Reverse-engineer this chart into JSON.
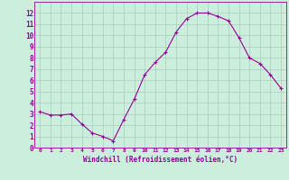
{
  "x": [
    0,
    1,
    2,
    3,
    4,
    5,
    6,
    7,
    8,
    9,
    10,
    11,
    12,
    13,
    14,
    15,
    16,
    17,
    18,
    19,
    20,
    21,
    22,
    23
  ],
  "y": [
    3.2,
    2.9,
    2.9,
    3.0,
    2.1,
    1.3,
    1.0,
    0.6,
    2.5,
    4.3,
    6.5,
    7.6,
    8.5,
    10.3,
    11.5,
    12.0,
    12.0,
    11.7,
    11.3,
    9.8,
    8.0,
    7.5,
    6.5,
    5.3
  ],
  "line_color": "#990099",
  "marker": "+",
  "marker_size": 3,
  "bg_color": "#cceedd",
  "grid_color": "#aaccbb",
  "xlabel": "Windchill (Refroidissement éolien,°C)",
  "xlabel_color": "#990099",
  "xlim": [
    -0.5,
    23.5
  ],
  "ylim": [
    0,
    13
  ],
  "xtick_labels": [
    "0",
    "1",
    "2",
    "3",
    "4",
    "5",
    "6",
    "7",
    "8",
    "9",
    "10",
    "11",
    "12",
    "13",
    "14",
    "15",
    "16",
    "17",
    "18",
    "19",
    "20",
    "21",
    "22",
    "23"
  ],
  "ytick_values": [
    0,
    1,
    2,
    3,
    4,
    5,
    6,
    7,
    8,
    9,
    10,
    11,
    12
  ]
}
